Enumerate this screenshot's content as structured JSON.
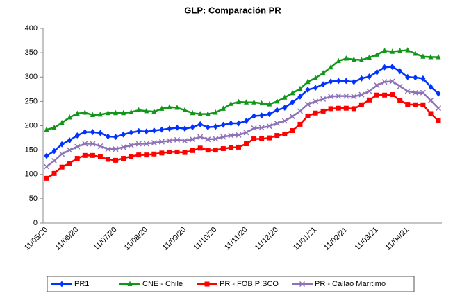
{
  "chart_data": {
    "type": "line",
    "title": "GLP: Comparación PR",
    "categories": [
      "11/05/20",
      null,
      null,
      null,
      "11/06/20",
      null,
      null,
      null,
      null,
      "11/07/20",
      null,
      null,
      null,
      "11/08/20",
      null,
      null,
      null,
      null,
      "11/09/20",
      null,
      null,
      null,
      "11/10/20",
      null,
      null,
      null,
      "11/11/20",
      null,
      null,
      null,
      "11/12/20",
      null,
      null,
      null,
      null,
      "11/01/21",
      null,
      null,
      null,
      "11/02/21",
      null,
      null,
      null,
      "11/03/21",
      null,
      null,
      null,
      "11/04/21",
      null,
      null,
      null,
      null
    ],
    "series": [
      {
        "name": "PR1",
        "color": "#0033ff",
        "marker": "diamond",
        "values": [
          138,
          148,
          162,
          170,
          180,
          187,
          187,
          185,
          178,
          177,
          182,
          186,
          189,
          188,
          190,
          192,
          194,
          196,
          194,
          197,
          203,
          197,
          198,
          202,
          205,
          205,
          210,
          220,
          221,
          224,
          232,
          237,
          248,
          260,
          274,
          278,
          285,
          291,
          292,
          292,
          290,
          297,
          301,
          310,
          320,
          321,
          312,
          300,
          299,
          297,
          280,
          266
        ]
      },
      {
        "name": "CNE - Chile",
        "color": "#109618",
        "marker": "triangle",
        "values": [
          192,
          196,
          206,
          217,
          225,
          227,
          222,
          223,
          226,
          226,
          226,
          228,
          232,
          230,
          229,
          235,
          238,
          237,
          232,
          226,
          224,
          224,
          227,
          235,
          245,
          249,
          248,
          248,
          246,
          244,
          250,
          258,
          267,
          276,
          290,
          298,
          308,
          320,
          333,
          338,
          336,
          335,
          340,
          346,
          354,
          352,
          354,
          355,
          348,
          342,
          341,
          341
        ]
      },
      {
        "name": "PR - FOB PISCO",
        "color": "#ff0000",
        "marker": "square",
        "values": [
          92,
          102,
          115,
          123,
          133,
          139,
          139,
          136,
          131,
          129,
          133,
          137,
          140,
          140,
          142,
          144,
          146,
          146,
          145,
          149,
          154,
          150,
          150,
          153,
          155,
          156,
          163,
          173,
          173,
          175,
          180,
          183,
          190,
          203,
          220,
          226,
          230,
          235,
          236,
          236,
          235,
          243,
          253,
          263,
          263,
          264,
          252,
          244,
          243,
          243,
          225,
          210
        ]
      },
      {
        "name": "PR - Callao Marítimo",
        "color": "#8e72b8",
        "marker": "x",
        "values": [
          116,
          128,
          142,
          150,
          157,
          163,
          163,
          158,
          152,
          152,
          156,
          160,
          163,
          163,
          165,
          167,
          169,
          171,
          169,
          172,
          177,
          172,
          173,
          177,
          180,
          181,
          186,
          195,
          196,
          199,
          205,
          210,
          219,
          230,
          244,
          250,
          255,
          260,
          261,
          261,
          260,
          264,
          271,
          283,
          290,
          291,
          281,
          271,
          268,
          268,
          252,
          236
        ]
      }
    ],
    "ylim": [
      0,
      400
    ],
    "yticks": [
      0,
      50,
      100,
      150,
      200,
      250,
      300,
      350,
      400
    ],
    "grid": false,
    "legend": "bottom"
  }
}
